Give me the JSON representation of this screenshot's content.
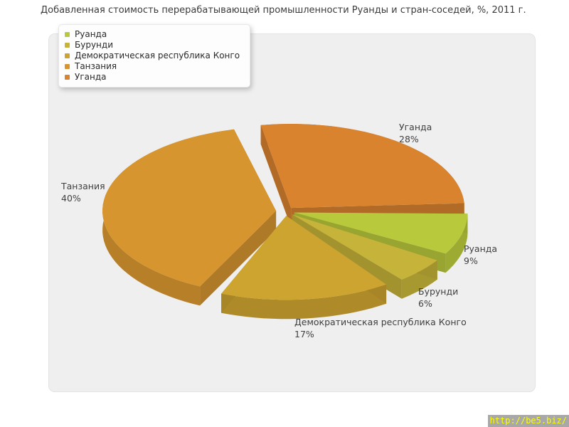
{
  "page": {
    "background": "#ffffff"
  },
  "chart_data": {
    "type": "pie",
    "is_3d": true,
    "title": "Добавленная стоимость перерабатывающей промышленности Руанды и стран-соседей, %, 2011 г.",
    "unit": "%",
    "legend_position": "top-left",
    "label_format": "{label} {value}%",
    "slices": [
      {
        "label": "Руанда",
        "value": 9,
        "color": "#b9c93c"
      },
      {
        "label": "Бурунди",
        "value": 6,
        "color": "#c6b339"
      },
      {
        "label": "Демократическая республика Конго",
        "value": 17,
        "color": "#cda42f"
      },
      {
        "label": "Танзания",
        "value": 40,
        "color": "#d6952f"
      },
      {
        "label": "Уганда",
        "value": 28,
        "color": "#d9832f"
      }
    ]
  },
  "watermark": {
    "text": "http://be5.biz/",
    "text_color": "#ffff00",
    "background": "#a8a8a8"
  }
}
